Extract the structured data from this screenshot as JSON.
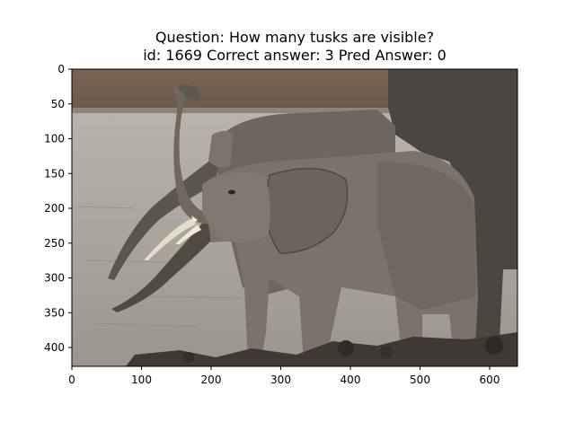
{
  "figure": {
    "title_line1": "Question: How many tusks are visible?",
    "title_line2": "id: 1669 Correct answer: 3 Pred Answer: 0"
  },
  "axes": {
    "x_ticks": [
      "0",
      "100",
      "200",
      "300",
      "400",
      "500",
      "600"
    ],
    "y_ticks": [
      "0",
      "50",
      "100",
      "150",
      "200",
      "250",
      "300",
      "350",
      "400"
    ]
  },
  "image": {
    "subject": "elephants at a waterhole, young elephant raising trunk in foreground",
    "colors": {
      "sky_bank": "#6f5a49",
      "water": "#a7a5a2",
      "elephant": "#5f5a53",
      "elephant_dark": "#3f3b36",
      "mud": "#45403a",
      "tusk": "#e8e0cc"
    }
  }
}
